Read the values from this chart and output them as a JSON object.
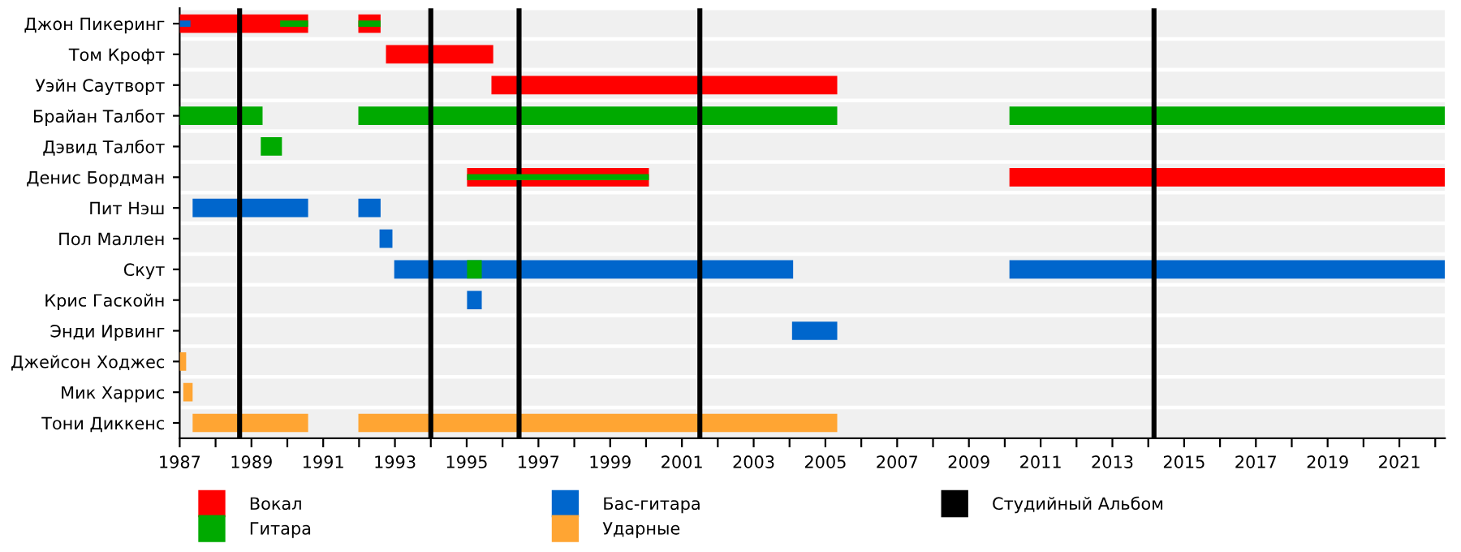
{
  "chart_data": {
    "type": "bar",
    "orientation": "horizontal",
    "categories": [
      "Джон Пикеринг",
      "Том Крофт",
      "Уэйн Саутворт",
      "Брайан Талбот",
      "Дэвид Талбот",
      "Денис Бордман",
      "Пит Нэш",
      "Пол Маллен",
      "Скут",
      "Крис Гаскойн",
      "Энди Ирвинг",
      "Джейсон Ходжес",
      "Мик Харрис",
      "Тони Диккенс"
    ],
    "series": [
      {
        "name": "Вокал",
        "color": "#ff0000",
        "base": [
          1987,
          1992.75,
          1995.69,
          null,
          null,
          2010.13,
          null,
          null,
          null,
          null,
          null,
          null,
          null,
          null
        ],
        "values": [
          3.58,
          2.99,
          9.64,
          null,
          null,
          12.14,
          null,
          null,
          null,
          null,
          null,
          null,
          null,
          null
        ]
      },
      {
        "color": "#ff0000",
        "base": [
          1991.98,
          null,
          null,
          null,
          null,
          1995.01,
          null,
          null,
          null,
          null,
          null,
          null,
          null,
          null
        ],
        "values": [
          0.62,
          null,
          null,
          null,
          null,
          5.07,
          null,
          null,
          null,
          null,
          null,
          null,
          null,
          null
        ]
      },
      {
        "name": "Гитара",
        "color": "#00aa00",
        "base": [
          null,
          null,
          null,
          1987,
          1989.26,
          1995.01,
          null,
          null,
          1995.01,
          null,
          null,
          null,
          null,
          null
        ],
        "values": [
          null,
          null,
          null,
          2.31,
          0.59,
          5.07,
          null,
          null,
          0.41,
          null,
          null,
          null,
          null,
          null
        ]
      },
      {
        "color": "#00aa00",
        "base": [
          1989.8,
          null,
          null,
          1991.98,
          null,
          null,
          null,
          null,
          null,
          null,
          null,
          null,
          null,
          null
        ],
        "values": [
          0.78,
          null,
          null,
          13.35,
          null,
          null,
          null,
          null,
          null,
          null,
          null,
          null,
          null,
          null
        ]
      },
      {
        "color": "#00aa00",
        "base": [
          1991.98,
          null,
          null,
          2010.13,
          null,
          null,
          null,
          null,
          null,
          null,
          null,
          null,
          null,
          null
        ],
        "values": [
          0.62,
          null,
          null,
          12.14,
          null,
          null,
          null,
          null,
          null,
          null,
          null,
          null,
          null,
          null
        ]
      },
      {
        "name": "Бас-гитара",
        "color": "#0066cc",
        "base": [
          1987,
          null,
          null,
          null,
          null,
          null,
          1987.36,
          1992.57,
          1992.98,
          1995.01,
          2004.07,
          null,
          null,
          null
        ],
        "values": [
          0.3,
          null,
          null,
          null,
          null,
          null,
          3.22,
          0.36,
          11.12,
          0.41,
          1.26,
          null,
          null,
          null
        ]
      },
      {
        "color": "#0066cc",
        "base": [
          null,
          null,
          null,
          null,
          null,
          null,
          1991.98,
          null,
          2010.13,
          null,
          null,
          null,
          null,
          null
        ],
        "values": [
          null,
          null,
          null,
          null,
          null,
          null,
          0.62,
          null,
          12.14,
          null,
          null,
          null,
          null,
          null
        ]
      },
      {
        "name": "Ударные",
        "color": "#ffa533",
        "base": [
          null,
          null,
          null,
          null,
          null,
          null,
          null,
          null,
          null,
          null,
          null,
          1987,
          1987.1,
          1987.36
        ],
        "values": [
          null,
          null,
          null,
          null,
          null,
          null,
          null,
          null,
          null,
          null,
          null,
          0.18,
          0.26,
          3.22
        ]
      },
      {
        "color": "#ffa533",
        "base": [
          null,
          null,
          null,
          null,
          null,
          null,
          null,
          null,
          null,
          null,
          null,
          null,
          null,
          1991.98
        ],
        "values": [
          null,
          null,
          null,
          null,
          null,
          null,
          null,
          null,
          null,
          null,
          null,
          null,
          null,
          13.35
        ]
      }
    ],
    "ref_lines": [
      {
        "axis": "x",
        "value": 1988.67,
        "label": "Студийный Альбом",
        "color": "#000000"
      },
      {
        "axis": "x",
        "value": 1994.0,
        "color": "#000000"
      },
      {
        "axis": "x",
        "value": 1996.46,
        "color": "#000000"
      },
      {
        "axis": "x",
        "value": 2001.5,
        "color": "#000000"
      },
      {
        "axis": "x",
        "value": 2014.16,
        "color": "#000000"
      }
    ],
    "xlim": [
      1987,
      2022.27
    ],
    "xticks": [
      1987,
      {
        "value": 1988,
        "label": null
      },
      1989,
      {
        "value": 1990,
        "label": null
      },
      1991,
      {
        "value": 1992,
        "label": null
      },
      1993,
      {
        "value": 1994,
        "label": null
      },
      1995,
      {
        "value": 1996,
        "label": null
      },
      1997,
      {
        "value": 1998,
        "label": null
      },
      1999,
      {
        "value": 2000,
        "label": null
      },
      2001,
      {
        "value": 2002,
        "label": null
      },
      2003,
      {
        "value": 2004,
        "label": null
      },
      2005,
      {
        "value": 2006,
        "label": null
      },
      2007,
      {
        "value": 2008,
        "label": null
      },
      2009,
      {
        "value": 2010,
        "label": null
      },
      2011,
      {
        "value": 2012,
        "label": null
      },
      2013,
      {
        "value": 2014,
        "label": null
      },
      2015,
      {
        "value": 2016,
        "label": null
      },
      2017,
      {
        "value": 2018,
        "label": null
      },
      2019,
      {
        "value": 2020,
        "label": null
      },
      2021,
      {
        "value": 2022,
        "label": null
      }
    ],
    "grid": "y",
    "legend": "bottom"
  }
}
